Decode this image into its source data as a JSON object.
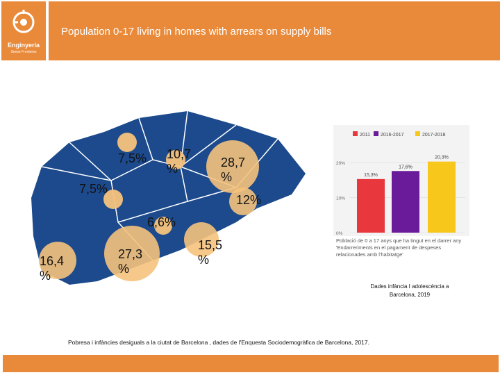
{
  "header": {
    "logo_line1": "Enginyeria",
    "logo_line2": "Sense Fronteres",
    "title": "Population 0-17 living in homes with arrears on supply bills"
  },
  "map_labels": [
    {
      "id": "l1",
      "text": "7,5%"
    },
    {
      "id": "l2",
      "text": "10,7 %"
    },
    {
      "id": "l3",
      "text": "28,7 %"
    },
    {
      "id": "l4",
      "text": "7,5%"
    },
    {
      "id": "l5",
      "text": "12%"
    },
    {
      "id": "l6",
      "text": "6,6%"
    },
    {
      "id": "l7",
      "text": "16,4 %"
    },
    {
      "id": "l8",
      "text": "27,3 %"
    },
    {
      "id": "l9",
      "text": "15,5 %"
    }
  ],
  "chart_data": {
    "type": "bar",
    "categories": [
      "2011",
      "2016-2017",
      "2017-2018"
    ],
    "values": [
      15.3,
      17.6,
      20.3
    ],
    "value_labels": [
      "15,3%",
      "17,6%",
      "20,3%"
    ],
    "colors": [
      "#e8383d",
      "#6a1b9a",
      "#f7c71c"
    ],
    "legend": [
      "2011",
      "2016-2017",
      "2017-2018"
    ],
    "ytick_labels": [
      "0%",
      "10%",
      "20%"
    ],
    "yticks": [
      0,
      10,
      20
    ],
    "ylim": [
      0,
      24
    ],
    "caption": "Població de 0 a 17 anys que ha tingut en el darrer any 'Endarreriments en el pagament de despeses relacionades amb l'habitatge'"
  },
  "sources": {
    "inset_source": "Dades infància I adolescència a Barcelona, 2019",
    "footer_source": "Pobresa i infàncies desiguals a la ciutat de Barcelona , dades de l'Enquesta Sociodemogràfica de Barcelona, 2017."
  }
}
